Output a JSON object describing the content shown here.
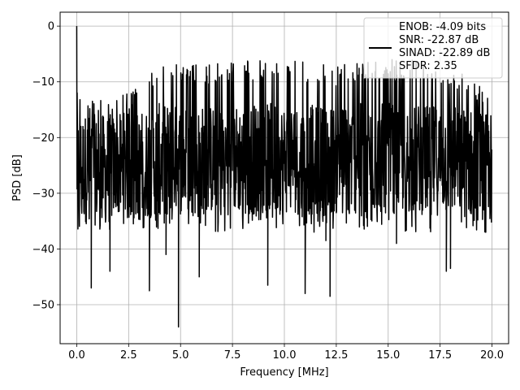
{
  "chart_data": {
    "type": "line",
    "title": "",
    "xlabel": "Frequency [MHz]",
    "ylabel": "PSD [dB]",
    "xlim": [
      -0.8,
      20.8
    ],
    "ylim": [
      -57,
      2.5
    ],
    "xticks": [
      0.0,
      2.5,
      5.0,
      7.5,
      10.0,
      12.5,
      15.0,
      17.5,
      20.0
    ],
    "xtick_labels": [
      "0.0",
      "2.5",
      "5.0",
      "7.5",
      "10.0",
      "12.5",
      "15.0",
      "17.5",
      "20.0"
    ],
    "yticks": [
      0,
      -10,
      -20,
      -30,
      -40,
      -50
    ],
    "ytick_labels": [
      "0",
      "−10",
      "−20",
      "−30",
      "−40",
      "−50"
    ],
    "grid": true,
    "legend_position": "top-right",
    "line_color": "#000000",
    "series": [
      {
        "legend_lines": [
          "ENOB: -4.09 bits",
          "SNR: -22.87 dB",
          "SINAD: -22.89 dB",
          "SFDR: 2.35"
        ],
        "x_range": [
          0,
          20
        ],
        "dc_peak": {
          "x": 0.0,
          "y": 0.0
        },
        "upper_envelope": [
          [
            0.0,
            -11
          ],
          [
            1.0,
            -13
          ],
          [
            2.0,
            -12
          ],
          [
            3.0,
            -11
          ],
          [
            4.0,
            -6
          ],
          [
            6.0,
            -7
          ],
          [
            8.0,
            -6
          ],
          [
            10.0,
            -6
          ],
          [
            12.0,
            -7
          ],
          [
            14.0,
            -6
          ],
          [
            16.0,
            -6
          ],
          [
            18.0,
            -7
          ],
          [
            19.5,
            -10
          ],
          [
            20.0,
            -12
          ]
        ],
        "noise_floor_typical": [
          -35,
          -15
        ],
        "deep_nulls": [
          [
            0.7,
            -47
          ],
          [
            1.6,
            -44
          ],
          [
            3.5,
            -47.5
          ],
          [
            4.3,
            -41
          ],
          [
            4.9,
            -54
          ],
          [
            5.9,
            -45
          ],
          [
            9.2,
            -46.5
          ],
          [
            11.0,
            -48
          ],
          [
            12.0,
            -38.5
          ],
          [
            12.2,
            -48.5
          ],
          [
            15.4,
            -39
          ],
          [
            17.8,
            -44
          ],
          [
            18.0,
            -43.5
          ],
          [
            19.7,
            -37
          ]
        ]
      }
    ]
  }
}
